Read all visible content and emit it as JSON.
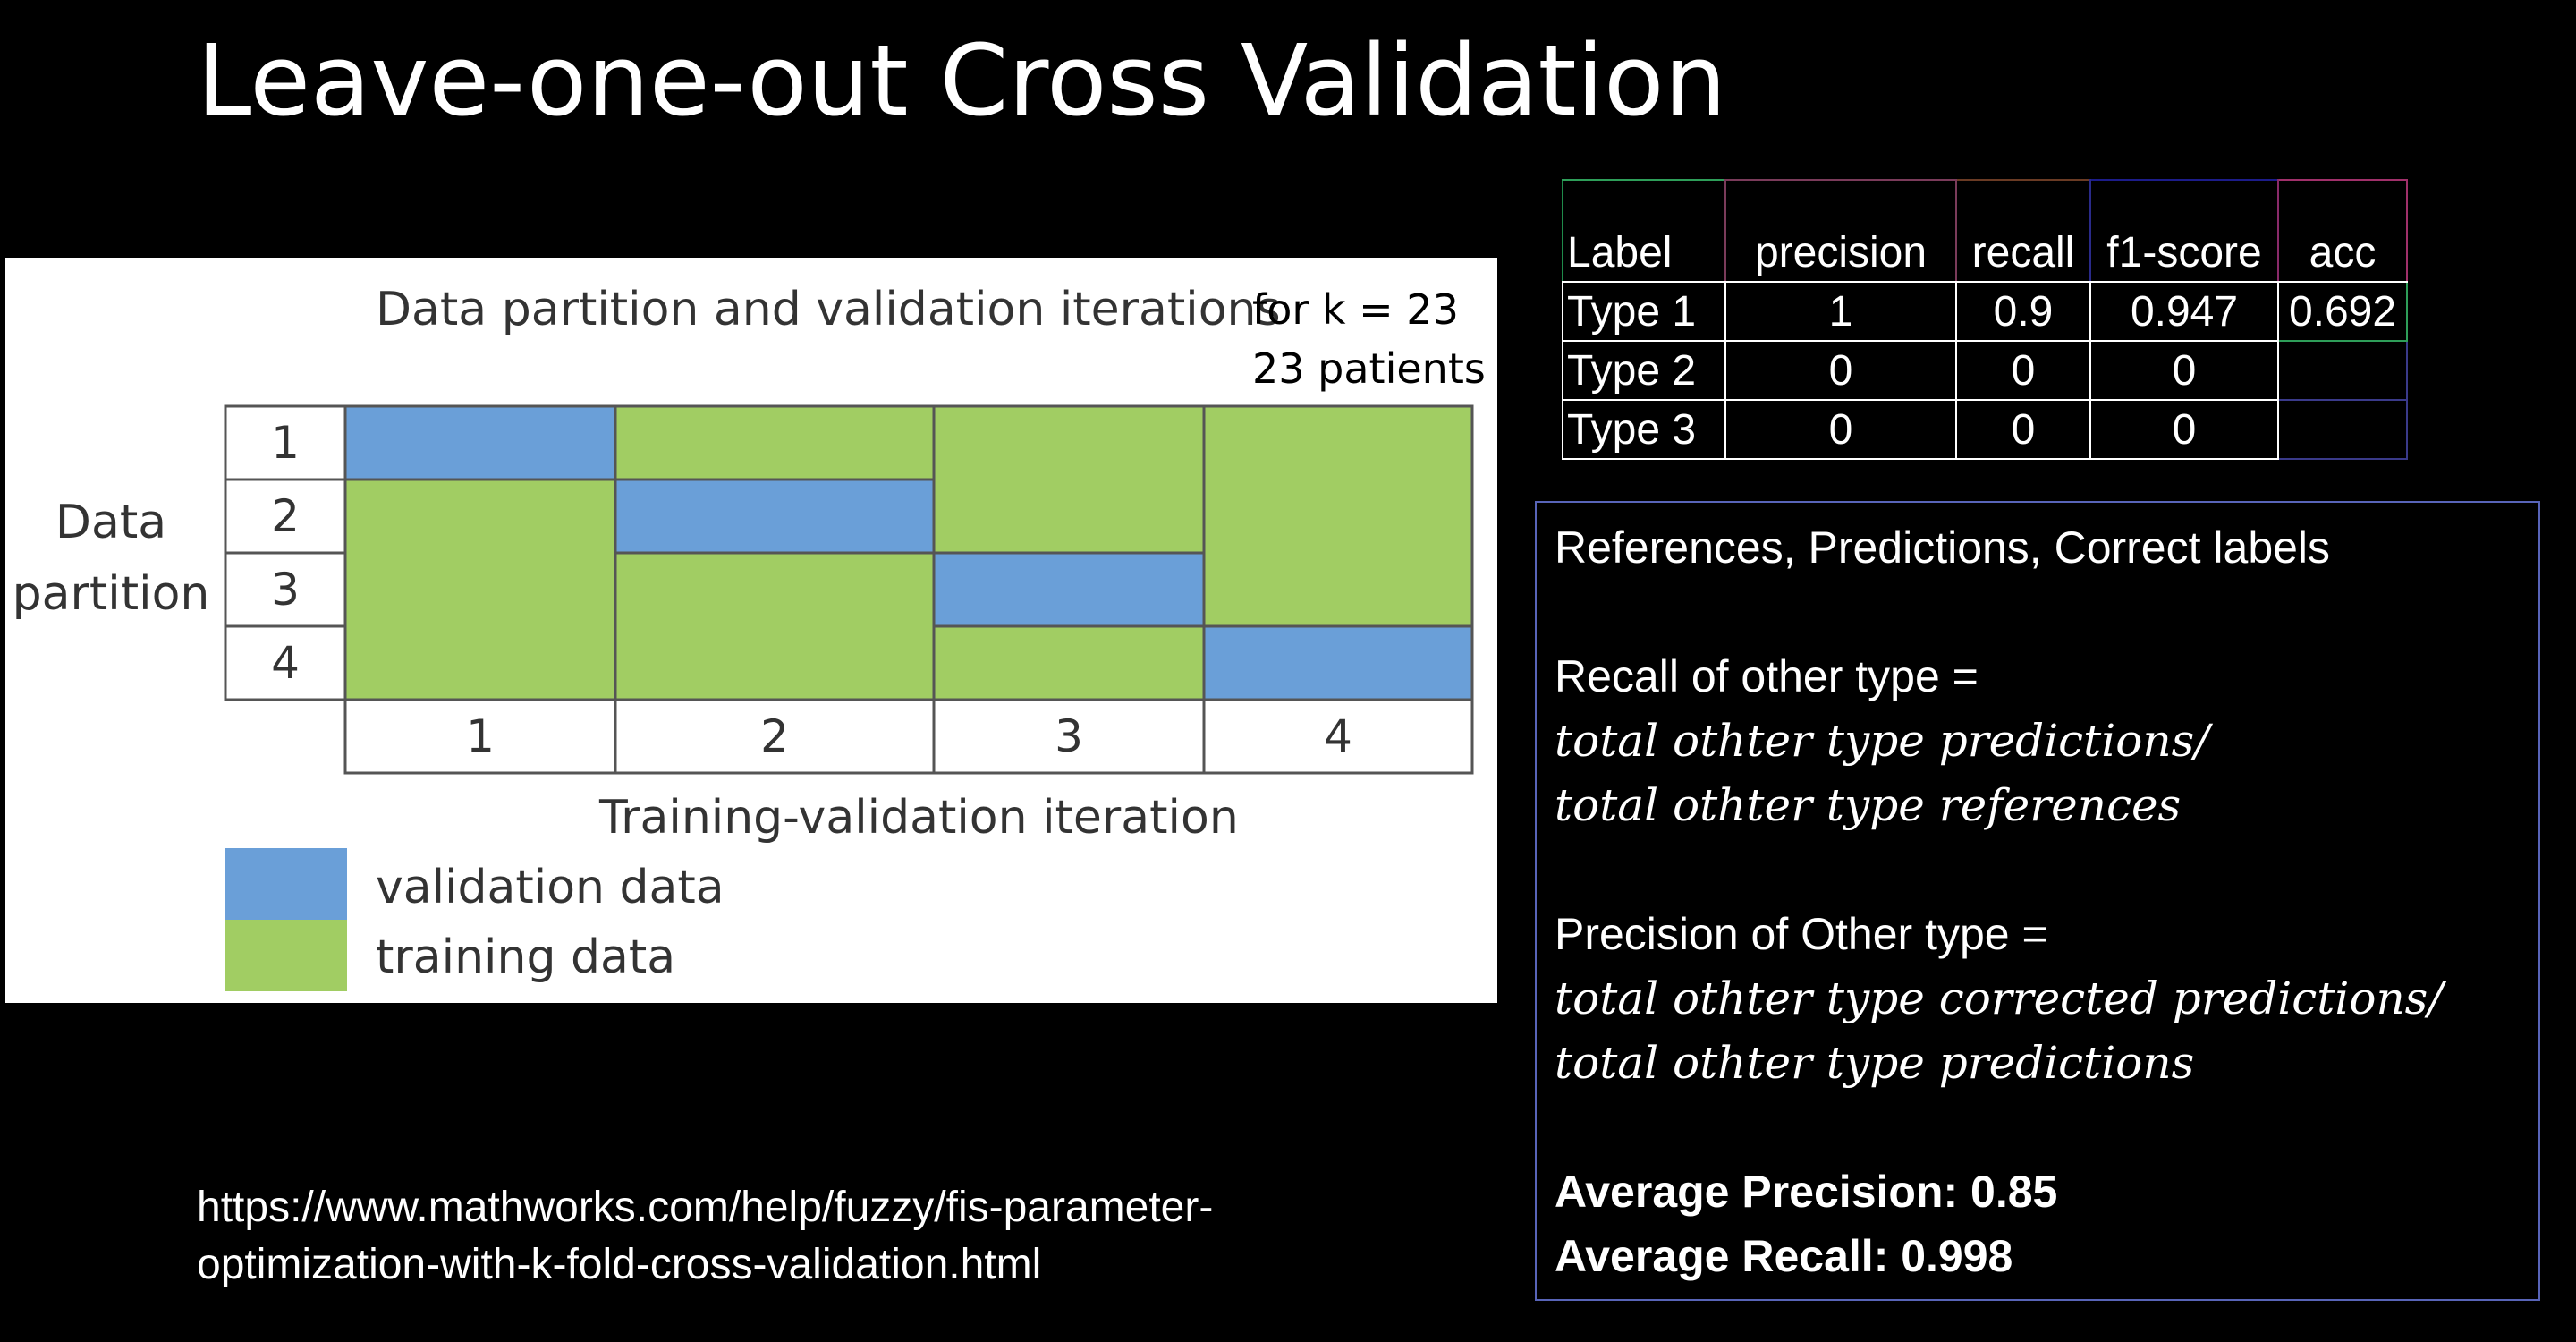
{
  "slide": {
    "title": "Leave-one-out Cross Validation",
    "source_line1": "https://www.mathworks.com/help/fuzzy/fis-parameter-",
    "source_line2": "optimization-with-k-fold-cross-validation.html"
  },
  "diagram": {
    "title": "Data partition and validation iterations",
    "annotation_line1": "for k = 23",
    "annotation_line2": "23 patients",
    "ylabel_line1": "Data",
    "ylabel_line2": "partition",
    "xlabel": "Training-validation iteration",
    "partition_labels": [
      "1",
      "2",
      "3",
      "4"
    ],
    "iteration_labels": [
      "1",
      "2",
      "3",
      "4"
    ],
    "validation_partition_by_iteration": [
      1,
      2,
      3,
      4
    ],
    "legend": {
      "validation_label": "validation data",
      "training_label": "training data"
    },
    "colors": {
      "validation": "#6a9fd8",
      "training": "#a1cd63"
    }
  },
  "metrics": {
    "headers": [
      "Label",
      "precision",
      "recall",
      "f1-score",
      "acc"
    ],
    "rows": [
      {
        "label": "Type 1",
        "precision": "1",
        "recall": "0.9",
        "f1": "0.947",
        "acc": "0.692"
      },
      {
        "label": "Type 2",
        "precision": "0",
        "recall": "0",
        "f1": "0",
        "acc": ""
      },
      {
        "label": "Type 3",
        "precision": "0",
        "recall": "0",
        "f1": "0",
        "acc": ""
      }
    ]
  },
  "notes": {
    "heading": "References, Predictions, Correct labels",
    "recall_title": "Recall of other type =",
    "recall_formula_line1": "total othter type predictions/",
    "recall_formula_line2": "total othter type references",
    "precision_title": "Precision of Other type =",
    "precision_formula_line1": "total othter type corrected predictions/",
    "precision_formula_line2": "total othter type predictions",
    "avg_precision": "Average Precision: 0.85",
    "avg_recall": "Average Recall: 0.998"
  }
}
